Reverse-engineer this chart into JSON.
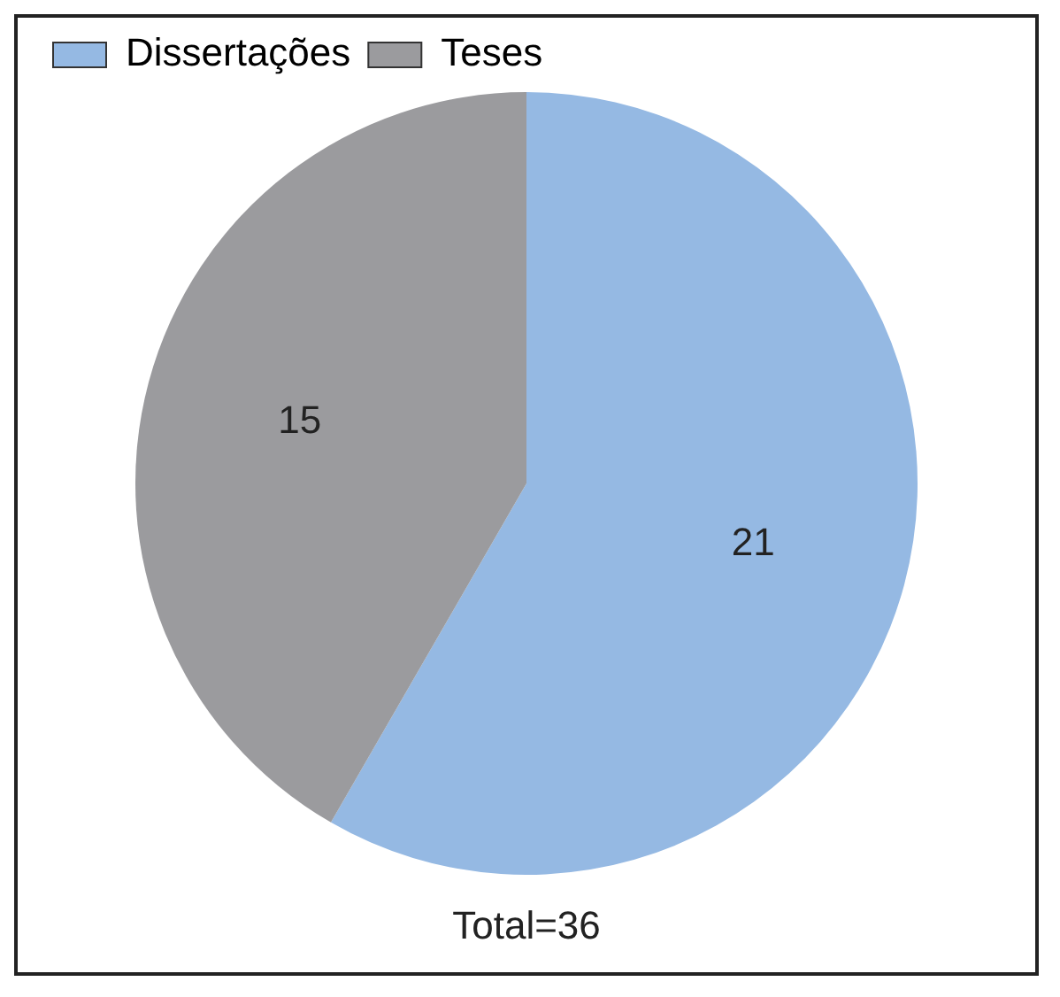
{
  "chart_data": {
    "type": "pie",
    "categories": [
      "Dissertações",
      "Teses"
    ],
    "values": [
      21,
      15
    ],
    "colors": [
      "#95b9e3",
      "#9b9b9e"
    ],
    "data_labels": true,
    "legend": "top left",
    "annotations": [
      "Total=36"
    ]
  }
}
